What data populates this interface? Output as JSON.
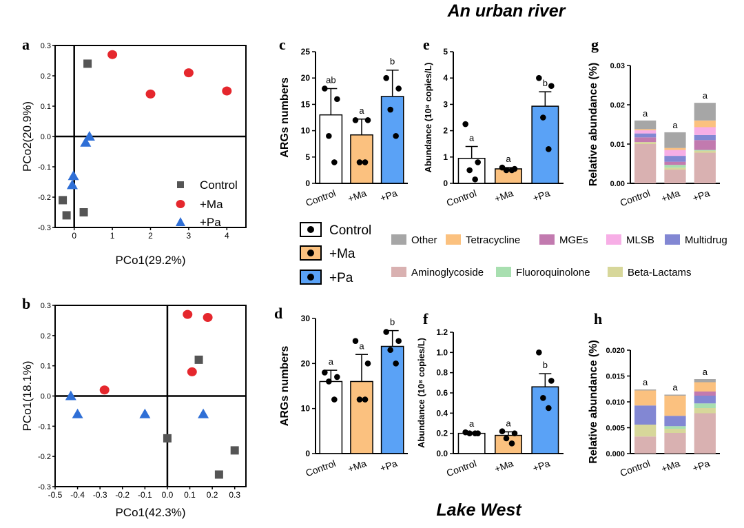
{
  "titles": {
    "top": "An urban river",
    "bottom": "Lake West"
  },
  "colors": {
    "control": "#555555",
    "ma": "#e5272d",
    "pa": "#2f6fd6",
    "bar_control": "#ffffff",
    "bar_ma": "#fbc17f",
    "bar_pa": "#5aa2f6"
  },
  "panel_labels": [
    "a",
    "b",
    "c",
    "d",
    "e",
    "f",
    "g",
    "h"
  ],
  "group_legend": {
    "labels": [
      "Control",
      "+Ma",
      "+Pa"
    ]
  },
  "category_legend": {
    "labels": [
      "Other",
      "Tetracycline",
      "MGEs",
      "MLSB",
      "Multidrug",
      "Aminoglycoside",
      "Fluoroquinolone",
      "Beta-Lactams"
    ],
    "colors": [
      "#a6a6a6",
      "#fbc17f",
      "#c27aaf",
      "#f7aee6",
      "#8287d3",
      "#d9b1b1",
      "#a8dfb0",
      "#d7d79a"
    ]
  },
  "chart_data": [
    {
      "id": "a",
      "type": "scatter",
      "xlabel": "PCo1(29.2%)",
      "ylabel": "PCo2(20.9%)",
      "xlim": [
        -0.5,
        4.5
      ],
      "ylim": [
        -0.3,
        0.3
      ],
      "xticks": [
        "0",
        "1",
        "2",
        "3",
        "4"
      ],
      "xtick_values": [
        0,
        1,
        2,
        3,
        4
      ],
      "yticks": [
        "0.3",
        "0.2",
        "0.1",
        "0.0",
        "-0.1",
        "-0.2",
        "-0.3"
      ],
      "ytick_values": [
        0.3,
        0.2,
        0.1,
        0.0,
        -0.1,
        -0.2,
        -0.3
      ],
      "legend": [
        "Control",
        "+Ma",
        "+Pa"
      ],
      "series": [
        {
          "name": "Control",
          "points": [
            [
              0.35,
              0.24
            ],
            [
              -0.3,
              -0.21
            ],
            [
              -0.2,
              -0.26
            ],
            [
              0.25,
              -0.25
            ]
          ]
        },
        {
          "name": "+Ma",
          "points": [
            [
              1.0,
              0.27
            ],
            [
              2.0,
              0.14
            ],
            [
              3.0,
              0.21
            ],
            [
              4.0,
              0.15
            ]
          ]
        },
        {
          "name": "+Pa",
          "points": [
            [
              0.4,
              0.0
            ],
            [
              0.3,
              -0.02
            ],
            [
              -0.02,
              -0.13
            ],
            [
              -0.05,
              -0.16
            ]
          ]
        }
      ]
    },
    {
      "id": "b",
      "type": "scatter",
      "xlabel": "PCo1(42.3%)",
      "ylabel": "PCo1(18.1%)",
      "xlim": [
        -0.5,
        0.35
      ],
      "ylim": [
        -0.3,
        0.3
      ],
      "xticks": [
        "-0.5",
        "-0.4",
        "-0.3",
        "-0.2",
        "-0.1",
        "0.0",
        "0.1",
        "0.2",
        "0.3"
      ],
      "xtick_values": [
        -0.5,
        -0.4,
        -0.3,
        -0.2,
        -0.1,
        0.0,
        0.1,
        0.2,
        0.3
      ],
      "yticks": [
        "0.3",
        "0.2",
        "0.1",
        "0.0",
        "-0.1",
        "-0.2",
        "-0.3"
      ],
      "ytick_values": [
        0.3,
        0.2,
        0.1,
        0.0,
        -0.1,
        -0.2,
        -0.3
      ],
      "series": [
        {
          "name": "Control",
          "points": [
            [
              0.14,
              0.12
            ],
            [
              0.0,
              -0.14
            ],
            [
              0.3,
              -0.18
            ],
            [
              0.23,
              -0.26
            ]
          ]
        },
        {
          "name": "+Ma",
          "points": [
            [
              0.09,
              0.27
            ],
            [
              0.18,
              0.26
            ],
            [
              0.11,
              0.08
            ],
            [
              -0.28,
              0.02
            ]
          ]
        },
        {
          "name": "+Pa",
          "points": [
            [
              -0.43,
              0.0
            ],
            [
              -0.4,
              -0.06
            ],
            [
              -0.1,
              -0.06
            ],
            [
              0.16,
              -0.06
            ]
          ]
        }
      ]
    },
    {
      "id": "c",
      "type": "bar",
      "ylabel": "ARGs numbers",
      "categories": [
        "Control",
        "+Ma",
        "+Pa"
      ],
      "values": [
        13,
        9.2,
        16.5
      ],
      "errors": [
        5,
        3,
        5
      ],
      "ylim": [
        0,
        25
      ],
      "yticks": [
        "0",
        "5",
        "10",
        "15",
        "20",
        "25"
      ],
      "ytick_values": [
        0,
        5,
        10,
        15,
        20,
        25
      ],
      "letters": [
        "ab",
        "a",
        "b"
      ],
      "points": [
        [
          18,
          16,
          9,
          4
        ],
        [
          12,
          12,
          4,
          4
        ],
        [
          20,
          18,
          14,
          9
        ]
      ]
    },
    {
      "id": "d",
      "type": "bar",
      "ylabel": "ARGs numbers",
      "categories": [
        "Control",
        "+Ma",
        "+Pa"
      ],
      "values": [
        16,
        16,
        23.8
      ],
      "errors": [
        2.5,
        6,
        3.5
      ],
      "ylim": [
        0,
        30
      ],
      "yticks": [
        "0",
        "10",
        "20",
        "30"
      ],
      "ytick_values": [
        0,
        10,
        20,
        30
      ],
      "letters": [
        "a",
        "a",
        "b"
      ],
      "points": [
        [
          18,
          17,
          16,
          12
        ],
        [
          25,
          20,
          12,
          12
        ],
        [
          27,
          25,
          23,
          20
        ]
      ]
    },
    {
      "id": "e",
      "type": "bar",
      "ylabel": "Abundance (10⁸ copies/L)",
      "categories": [
        "Control",
        "+Ma",
        "+Pa"
      ],
      "values": [
        0.95,
        0.55,
        2.93
      ],
      "errors": [
        0.45,
        0.05,
        0.55
      ],
      "ylim": [
        0,
        5
      ],
      "yticks": [
        "0",
        "1",
        "2",
        "3",
        "4",
        "5"
      ],
      "ytick_values": [
        0,
        1,
        2,
        3,
        4,
        5
      ],
      "letters": [
        "a",
        "a",
        "b"
      ],
      "points": [
        [
          2.25,
          0.8,
          0.5,
          0.15
        ],
        [
          0.6,
          0.55,
          0.5,
          0.5
        ],
        [
          4.0,
          3.7,
          2.5,
          1.3
        ]
      ]
    },
    {
      "id": "f",
      "type": "bar",
      "ylabel": "Abundance (10⁸ copies/L)",
      "categories": [
        "Control",
        "+Ma",
        "+Pa"
      ],
      "values": [
        0.2,
        0.18,
        0.66
      ],
      "errors": [
        0.01,
        0.035,
        0.13
      ],
      "ylim": [
        0,
        1.2
      ],
      "yticks": [
        "0.0",
        "0.2",
        "0.4",
        "0.6",
        "0.8",
        "1.0",
        "1.2"
      ],
      "ytick_values": [
        0,
        0.2,
        0.4,
        0.6,
        0.8,
        1.0,
        1.2
      ],
      "letters": [
        "a",
        "a",
        "b"
      ],
      "points": [
        [
          0.21,
          0.2,
          0.2,
          0.2
        ],
        [
          0.22,
          0.2,
          0.15,
          0.1
        ],
        [
          1.0,
          0.72,
          0.55,
          0.45
        ]
      ]
    },
    {
      "id": "g",
      "type": "stacked_bar",
      "ylabel": "Relative abundance (%)",
      "categories": [
        "Control",
        "+Ma",
        "+Pa"
      ],
      "ylim": [
        0,
        0.03
      ],
      "yticks": [
        "0.00",
        "0.01",
        "0.02",
        "0.03"
      ],
      "ytick_values": [
        0,
        0.01,
        0.02,
        0.03
      ],
      "letters": [
        "a",
        "a",
        "a"
      ],
      "series": [
        {
          "name": "Aminoglycoside",
          "values": [
            0.01,
            0.0035,
            0.0078
          ]
        },
        {
          "name": "Beta-Lactams",
          "values": [
            0.0005,
            0.0005,
            0.0005
          ]
        },
        {
          "name": "Fluoroquinolone",
          "values": [
            0.0,
            0.0007,
            0.0002
          ]
        },
        {
          "name": "MGEs",
          "values": [
            0.0012,
            0.0008,
            0.0025
          ]
        },
        {
          "name": "Multidrug",
          "values": [
            0.001,
            0.0015,
            0.0013
          ]
        },
        {
          "name": "MLSB",
          "values": [
            0.0008,
            0.0015,
            0.002
          ]
        },
        {
          "name": "Tetracycline",
          "values": [
            0.0003,
            0.0005,
            0.0017
          ]
        },
        {
          "name": "Other",
          "values": [
            0.0022,
            0.004,
            0.0045
          ]
        }
      ]
    },
    {
      "id": "h",
      "type": "stacked_bar",
      "ylabel": "Relative abundance (%)",
      "categories": [
        "Control",
        "+Ma",
        "+Pa"
      ],
      "ylim": [
        0,
        0.02
      ],
      "yticks": [
        "0.000",
        "0.005",
        "0.010",
        "0.015",
        "0.020"
      ],
      "ytick_values": [
        0,
        0.005,
        0.01,
        0.015,
        0.02
      ],
      "letters": [
        "a",
        "a",
        "a"
      ],
      "series": [
        {
          "name": "Aminoglycoside",
          "values": [
            0.0033,
            0.004,
            0.0078
          ]
        },
        {
          "name": "Beta-Lactams",
          "values": [
            0.0023,
            0.0008,
            0.001
          ]
        },
        {
          "name": "Fluoroquinolone",
          "values": [
            0.0,
            0.0005,
            0.0009
          ]
        },
        {
          "name": "Multidrug",
          "values": [
            0.0037,
            0.002,
            0.0015
          ]
        },
        {
          "name": "MGEs",
          "values": [
            0.0,
            0.0,
            0.0008
          ]
        },
        {
          "name": "Tetracycline",
          "values": [
            0.0029,
            0.0039,
            0.0018
          ]
        },
        {
          "name": "Other",
          "values": [
            0.0002,
            0.0002,
            0.0006
          ]
        }
      ]
    }
  ]
}
